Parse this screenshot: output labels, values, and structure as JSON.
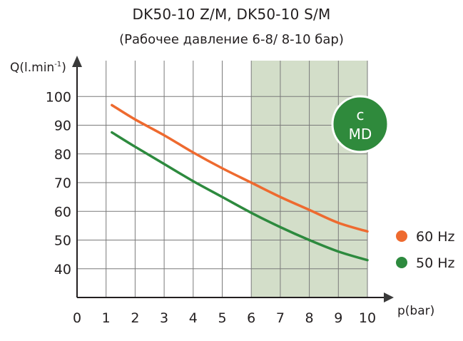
{
  "chart_data": {
    "type": "line",
    "title": "DK50-10 Z/M, DK50-10 S/M",
    "subtitle": "(Рабочее давление 6-8/ 8-10 бар)",
    "ylabel": "Q(l.min",
    "ylabel_sup": "-1",
    "ylabel_close": ")",
    "xlabel": "p(bar)",
    "xlim": [
      0,
      10
    ],
    "ylim": [
      30,
      110
    ],
    "xticks": [
      "0",
      "1",
      "2",
      "3",
      "4",
      "5",
      "6",
      "7",
      "8",
      "9",
      "10"
    ],
    "yticks": [
      "40",
      "50",
      "60",
      "70",
      "80",
      "90",
      "100"
    ],
    "grid": true,
    "shaded_region": {
      "x_from": 6,
      "x_to": 10,
      "color": "#d3dec9"
    },
    "badge": {
      "line1": "c",
      "line2": "MD",
      "color": "#2f8a3c",
      "position": "top-right"
    },
    "legend_position": "right",
    "series": [
      {
        "name": "60 Hz",
        "color": "#ee6a2f",
        "points": [
          [
            1.2,
            97
          ],
          [
            2,
            92
          ],
          [
            3,
            86.5
          ],
          [
            4,
            80.5
          ],
          [
            5,
            75
          ],
          [
            6,
            70
          ],
          [
            7,
            65
          ],
          [
            8,
            60.5
          ],
          [
            9,
            56
          ],
          [
            10,
            53
          ]
        ]
      },
      {
        "name": "50 Hz",
        "color": "#2d8a3e",
        "points": [
          [
            1.2,
            87.5
          ],
          [
            2,
            82.5
          ],
          [
            3,
            76.5
          ],
          [
            4,
            70.5
          ],
          [
            5,
            65
          ],
          [
            6,
            59.5
          ],
          [
            7,
            54.5
          ],
          [
            8,
            50
          ],
          [
            9,
            46
          ],
          [
            10,
            43
          ]
        ]
      }
    ]
  }
}
